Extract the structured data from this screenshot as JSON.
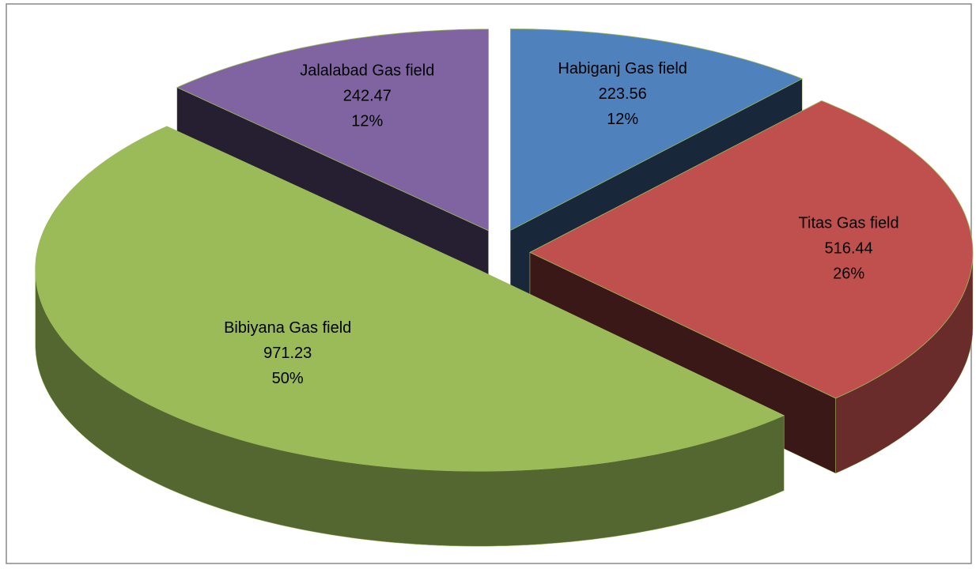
{
  "chart_data": {
    "type": "pie3d",
    "categories": [
      "Habiganj Gas field",
      "Titas Gas field",
      "Bibiyana Gas field",
      "Jalalabad Gas field"
    ],
    "values": [
      223.56,
      516.44,
      971.23,
      242.47
    ],
    "percents": [
      {
        "value": 12,
        "label": "12%"
      },
      {
        "value": 26,
        "label": "26%"
      },
      {
        "value": 50,
        "label": "50%"
      },
      {
        "value": 12,
        "label": "12%"
      }
    ],
    "colors": [
      "#4f81bd",
      "#c0504d",
      "#9bbb59",
      "#8064a2"
    ]
  }
}
